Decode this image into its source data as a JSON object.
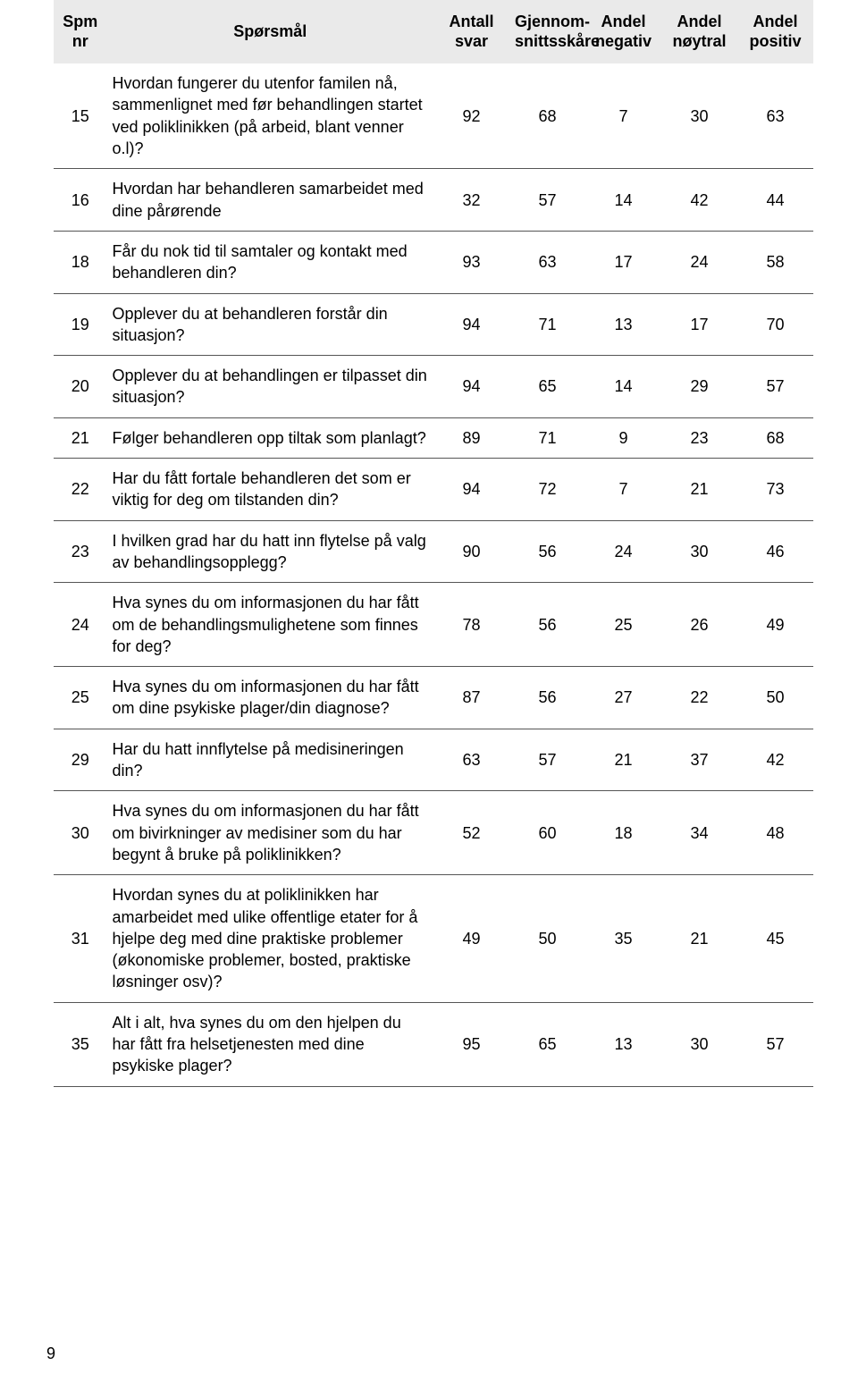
{
  "table": {
    "header_bg": "#eaeaea",
    "border_color": "#555555",
    "columns": [
      {
        "key": "nr",
        "label_line1": "Spm",
        "label_line2": "nr",
        "width_pct": 7,
        "align": "center"
      },
      {
        "key": "q",
        "label_line1": "Spørsmål",
        "label_line2": "",
        "width_pct": 43,
        "align": "left"
      },
      {
        "key": "antall",
        "label_line1": "Antall",
        "label_line2": "svar",
        "width_pct": 10,
        "align": "center"
      },
      {
        "key": "gjennom",
        "label_line1": "Gjennom-",
        "label_line2": "snittsskåre",
        "width_pct": 10,
        "align": "center"
      },
      {
        "key": "negativ",
        "label_line1": "Andel",
        "label_line2": "negativ",
        "width_pct": 10,
        "align": "center"
      },
      {
        "key": "noytral",
        "label_line1": "Andel",
        "label_line2": "nøytral",
        "width_pct": 10,
        "align": "center"
      },
      {
        "key": "positiv",
        "label_line1": "Andel",
        "label_line2": "positiv",
        "width_pct": 10,
        "align": "center"
      }
    ],
    "rows": [
      {
        "nr": "15",
        "q": "Hvordan fungerer du utenfor familen nå, sammenlignet med før behandlingen startet ved poliklinikken (på arbeid, blant venner o.l)?",
        "antall": "92",
        "gjennom": "68",
        "negativ": "7",
        "noytral": "30",
        "positiv": "63"
      },
      {
        "nr": "16",
        "q": "Hvordan har behandleren samarbeidet med dine pårørende",
        "antall": "32",
        "gjennom": "57",
        "negativ": "14",
        "noytral": "42",
        "positiv": "44"
      },
      {
        "nr": "18",
        "q": "Får du nok tid til samtaler og kontakt med behandleren din?",
        "antall": "93",
        "gjennom": "63",
        "negativ": "17",
        "noytral": "24",
        "positiv": "58"
      },
      {
        "nr": "19",
        "q": "Opplever du at behandleren forstår din situasjon?",
        "antall": "94",
        "gjennom": "71",
        "negativ": "13",
        "noytral": "17",
        "positiv": "70"
      },
      {
        "nr": "20",
        "q": "Opplever du at behandlingen er tilpasset din situasjon?",
        "antall": "94",
        "gjennom": "65",
        "negativ": "14",
        "noytral": "29",
        "positiv": "57"
      },
      {
        "nr": "21",
        "q": "Følger behandleren opp tiltak som planlagt?",
        "antall": "89",
        "gjennom": "71",
        "negativ": "9",
        "noytral": "23",
        "positiv": "68"
      },
      {
        "nr": "22",
        "q": "Har du fått fortale behandleren det som er viktig for deg om tilstanden din?",
        "antall": "94",
        "gjennom": "72",
        "negativ": "7",
        "noytral": "21",
        "positiv": "73"
      },
      {
        "nr": "23",
        "q": "I hvilken grad har du hatt inn flytelse på valg av behandlingsopplegg?",
        "antall": "90",
        "gjennom": "56",
        "negativ": "24",
        "noytral": "30",
        "positiv": "46"
      },
      {
        "nr": "24",
        "q": "Hva synes du om informasjonen du har fått om de behandlingsmulighetene som finnes for deg?",
        "antall": "78",
        "gjennom": "56",
        "negativ": "25",
        "noytral": "26",
        "positiv": "49"
      },
      {
        "nr": "25",
        "q": "Hva synes du om informasjonen du har fått om dine psykiske plager/din diagnose?",
        "antall": "87",
        "gjennom": "56",
        "negativ": "27",
        "noytral": "22",
        "positiv": "50"
      },
      {
        "nr": "29",
        "q": "Har du hatt innflytelse på medisineringen din?",
        "antall": "63",
        "gjennom": "57",
        "negativ": "21",
        "noytral": "37",
        "positiv": "42"
      },
      {
        "nr": "30",
        "q": "Hva synes du om informasjonen du har fått om bivirkninger av medisiner som du har begynt å bruke på poliklinikken?",
        "antall": "52",
        "gjennom": "60",
        "negativ": "18",
        "noytral": "34",
        "positiv": "48"
      },
      {
        "nr": "31",
        "q": "Hvordan synes du at poliklinikken har amarbeidet med ulike offentlige etater for å hjelpe deg med dine praktiske problemer (økonomiske problemer, bosted, praktiske løsninger osv)?",
        "antall": "49",
        "gjennom": "50",
        "negativ": "35",
        "noytral": "21",
        "positiv": "45"
      },
      {
        "nr": "35",
        "q": "Alt i alt, hva synes du om den hjelpen du har fått fra helsetjenesten med dine psykiske plager?",
        "antall": "95",
        "gjennom": "65",
        "negativ": "13",
        "noytral": "30",
        "positiv": "57"
      }
    ]
  },
  "page_number": "9"
}
